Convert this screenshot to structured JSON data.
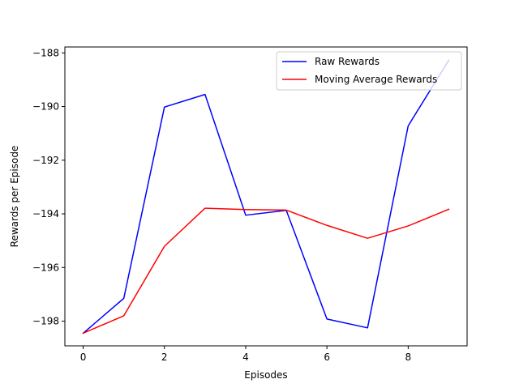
{
  "chart_data": {
    "type": "line",
    "title": "",
    "xlabel": "Episodes",
    "ylabel": "Rewards per Episode",
    "xlim": [
      -0.45,
      9.45
    ],
    "ylim": [
      -198.92,
      -187.78
    ],
    "xticks": [
      0,
      2,
      4,
      6,
      8
    ],
    "yticks": [
      -198,
      -196,
      -194,
      -192,
      -190,
      -188
    ],
    "grid": false,
    "legend_position": "upper right",
    "x": [
      0,
      1,
      2,
      3,
      4,
      5,
      6,
      7,
      8,
      9
    ],
    "series": [
      {
        "name": "Raw Rewards",
        "color": "#0000ff",
        "values": [
          -198.45,
          -197.15,
          -190.02,
          -189.55,
          -194.05,
          -193.87,
          -197.92,
          -198.25,
          -190.72,
          -188.27
        ]
      },
      {
        "name": "Moving Average Rewards",
        "color": "#ff0000",
        "values": [
          -198.45,
          -197.8,
          -195.21,
          -193.79,
          -193.84,
          -193.86,
          -194.43,
          -194.91,
          -194.45,
          -193.83
        ]
      }
    ]
  }
}
